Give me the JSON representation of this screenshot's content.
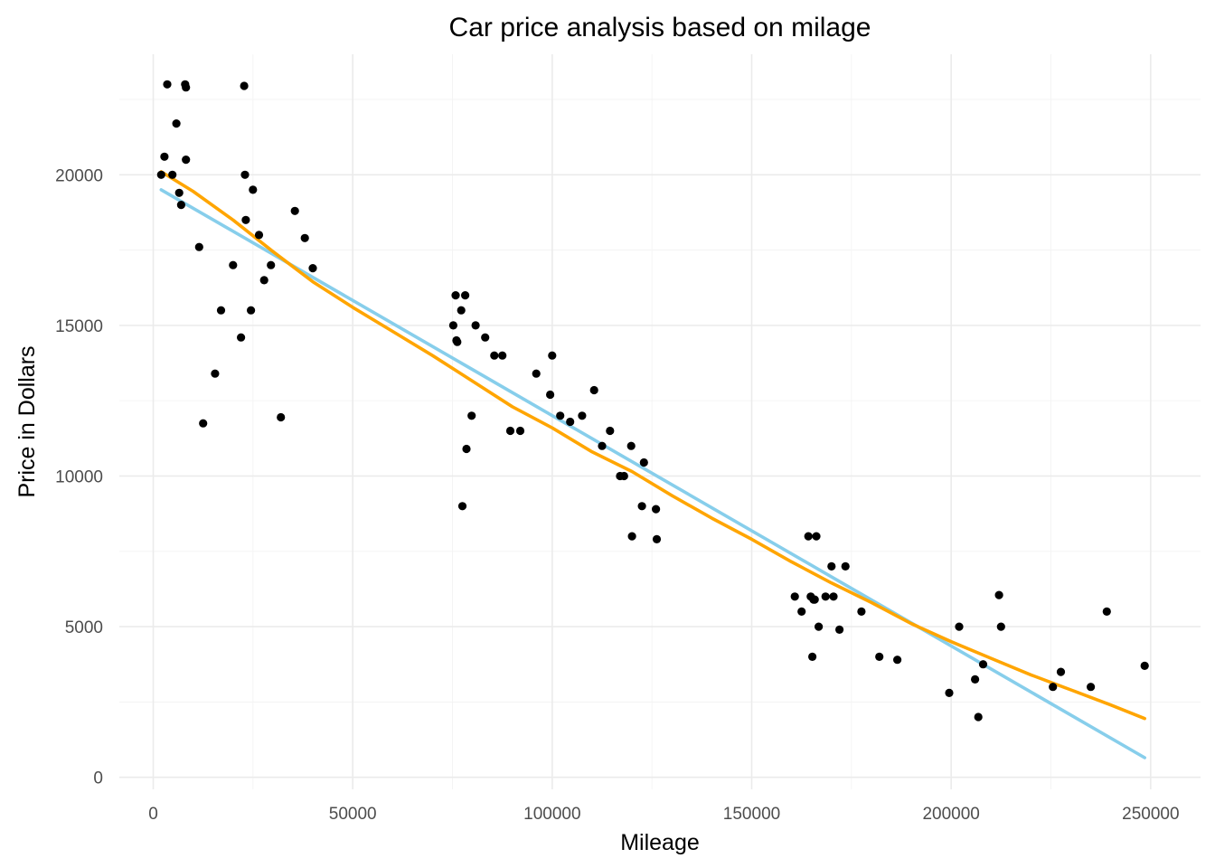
{
  "chart_data": {
    "type": "scatter",
    "title": "Car price analysis based on milage",
    "xlabel": "Mileage",
    "ylabel": "Price in Dollars",
    "xlim": [
      -8500,
      262500
    ],
    "ylim": [
      -400,
      24000
    ],
    "x_ticks": [
      0,
      50000,
      100000,
      150000,
      200000,
      250000
    ],
    "y_ticks": [
      0,
      5000,
      10000,
      15000,
      20000
    ],
    "x_tick_labels": [
      "0",
      "50000",
      "100000",
      "150000",
      "200000",
      "250000"
    ],
    "y_tick_labels": [
      "0",
      "5000",
      "10000",
      "15000",
      "20000"
    ],
    "grid": true,
    "legend": "none",
    "colors": {
      "points": "#000000",
      "linear_fit": "#87ceeb",
      "smooth_fit": "#ffa500"
    },
    "points": [
      [
        2000,
        20000
      ],
      [
        2800,
        20600
      ],
      [
        3500,
        23000
      ],
      [
        4800,
        20000
      ],
      [
        5800,
        21700
      ],
      [
        6500,
        19400
      ],
      [
        7000,
        19000
      ],
      [
        8000,
        23000
      ],
      [
        8200,
        22900
      ],
      [
        8200,
        20500
      ],
      [
        11500,
        17600
      ],
      [
        12500,
        11750
      ],
      [
        15500,
        13400
      ],
      [
        17000,
        15500
      ],
      [
        20000,
        17000
      ],
      [
        22000,
        14600
      ],
      [
        22800,
        22950
      ],
      [
        23000,
        20000
      ],
      [
        23200,
        18500
      ],
      [
        24500,
        15500
      ],
      [
        25000,
        19500
      ],
      [
        26500,
        18000
      ],
      [
        27800,
        16500
      ],
      [
        29500,
        17000
      ],
      [
        32000,
        11950
      ],
      [
        35500,
        18800
      ],
      [
        38000,
        17900
      ],
      [
        40000,
        16900
      ],
      [
        75200,
        15000
      ],
      [
        75800,
        16000
      ],
      [
        76000,
        14500
      ],
      [
        76200,
        14450
      ],
      [
        77200,
        15500
      ],
      [
        77500,
        9000
      ],
      [
        78200,
        16000
      ],
      [
        78500,
        10900
      ],
      [
        79800,
        12000
      ],
      [
        80800,
        15000
      ],
      [
        83200,
        14600
      ],
      [
        85500,
        14000
      ],
      [
        87500,
        14000
      ],
      [
        89500,
        11500
      ],
      [
        92000,
        11500
      ],
      [
        96000,
        13400
      ],
      [
        99500,
        12700
      ],
      [
        100000,
        14000
      ],
      [
        102000,
        12000
      ],
      [
        104500,
        11800
      ],
      [
        107500,
        12000
      ],
      [
        110500,
        12850
      ],
      [
        112500,
        11000
      ],
      [
        114500,
        11500
      ],
      [
        117000,
        10000
      ],
      [
        118000,
        10000
      ],
      [
        119800,
        11000
      ],
      [
        120000,
        8000
      ],
      [
        122500,
        9000
      ],
      [
        123000,
        10450
      ],
      [
        126000,
        8900
      ],
      [
        126200,
        7900
      ],
      [
        160800,
        6000
      ],
      [
        162500,
        5500
      ],
      [
        164200,
        8000
      ],
      [
        164800,
        6000
      ],
      [
        165200,
        4000
      ],
      [
        165500,
        5900
      ],
      [
        165800,
        5900
      ],
      [
        166200,
        8000
      ],
      [
        166800,
        5000
      ],
      [
        168500,
        6000
      ],
      [
        170000,
        7000
      ],
      [
        170500,
        6000
      ],
      [
        172000,
        4900
      ],
      [
        173500,
        7000
      ],
      [
        177500,
        5500
      ],
      [
        182000,
        4000
      ],
      [
        186500,
        3900
      ],
      [
        199500,
        2800
      ],
      [
        202000,
        5000
      ],
      [
        206000,
        3250
      ],
      [
        206800,
        2000
      ],
      [
        208000,
        3750
      ],
      [
        212000,
        6050
      ],
      [
        212500,
        5000
      ],
      [
        225500,
        3000
      ],
      [
        227500,
        3500
      ],
      [
        235000,
        3000
      ],
      [
        239000,
        5500
      ],
      [
        248500,
        3700
      ]
    ],
    "linear_fit": [
      [
        2000,
        19500
      ],
      [
        248500,
        650
      ]
    ],
    "smooth_fit": [
      [
        2000,
        20100
      ],
      [
        10000,
        19450
      ],
      [
        20000,
        18500
      ],
      [
        30000,
        17450
      ],
      [
        40000,
        16450
      ],
      [
        50000,
        15600
      ],
      [
        60000,
        14800
      ],
      [
        70000,
        14000
      ],
      [
        80000,
        13150
      ],
      [
        90000,
        12300
      ],
      [
        100000,
        11600
      ],
      [
        110000,
        10800
      ],
      [
        120000,
        10150
      ],
      [
        130000,
        9350
      ],
      [
        140000,
        8600
      ],
      [
        150000,
        7900
      ],
      [
        160000,
        7150
      ],
      [
        170000,
        6450
      ],
      [
        180000,
        5800
      ],
      [
        190000,
        5100
      ],
      [
        200000,
        4500
      ],
      [
        210000,
        3950
      ],
      [
        220000,
        3400
      ],
      [
        230000,
        2900
      ],
      [
        240000,
        2400
      ],
      [
        248500,
        1950
      ]
    ]
  }
}
